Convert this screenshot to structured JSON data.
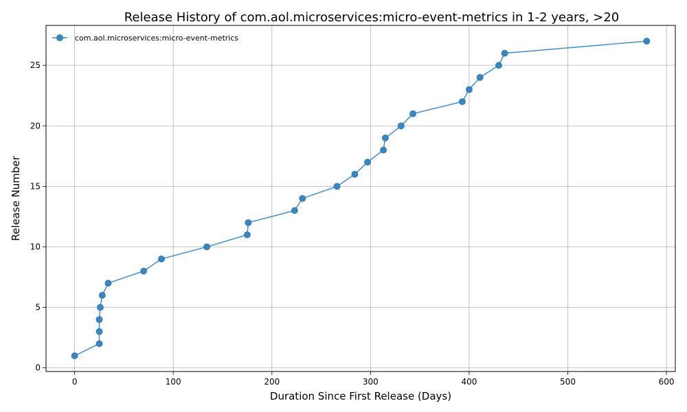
{
  "chart_data": {
    "type": "line",
    "title": "Release History of com.aol.microservices:micro-event-metrics in 1-2 years, >20",
    "xlabel": "Duration Since First Release (Days)",
    "ylabel": "Release Number",
    "xlim": [
      -29,
      609
    ],
    "ylim": [
      -0.3,
      28.3
    ],
    "xticks": [
      0,
      100,
      200,
      300,
      400,
      500,
      600
    ],
    "yticks": [
      0,
      5,
      10,
      15,
      20,
      25
    ],
    "grid": true,
    "legend_position": "top-left",
    "color": "#3a87c0",
    "series": [
      {
        "name": "com.aol.microservices:micro-event-metrics",
        "marker": "circle",
        "x": [
          0,
          25,
          25,
          25,
          26,
          28,
          34,
          70,
          88,
          134,
          175,
          176,
          223,
          231,
          266,
          284,
          297,
          313,
          315,
          331,
          343,
          393,
          400,
          411,
          430,
          436,
          580
        ],
        "y": [
          1,
          2,
          3,
          4,
          5,
          6,
          7,
          8,
          9,
          10,
          11,
          12,
          13,
          14,
          15,
          16,
          17,
          18,
          19,
          20,
          21,
          22,
          23,
          24,
          25,
          26,
          27
        ]
      }
    ]
  }
}
